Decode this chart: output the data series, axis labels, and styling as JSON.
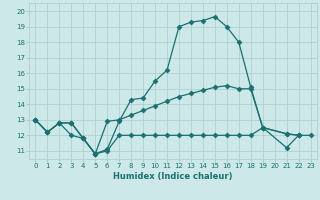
{
  "xlabel": "Humidex (Indice chaleur)",
  "bg_color": "#cce8e8",
  "grid_color": "#aacccc",
  "line_color": "#1a7070",
  "xlim": [
    -0.5,
    23.5
  ],
  "ylim": [
    10.5,
    20.5
  ],
  "yticks": [
    11,
    12,
    13,
    14,
    15,
    16,
    17,
    18,
    19,
    20
  ],
  "xticks": [
    0,
    1,
    2,
    3,
    4,
    5,
    6,
    7,
    8,
    9,
    10,
    11,
    12,
    13,
    14,
    15,
    16,
    17,
    18,
    19,
    20,
    21,
    22,
    23
  ],
  "line1_x": [
    0,
    1,
    2,
    3,
    4,
    5,
    6,
    7,
    8,
    9,
    10,
    11,
    12,
    13,
    14,
    15,
    16,
    17,
    18,
    19,
    21,
    22
  ],
  "line1_y": [
    13.0,
    12.2,
    12.8,
    12.8,
    11.8,
    10.8,
    11.1,
    12.9,
    14.3,
    14.4,
    15.5,
    16.2,
    19.0,
    19.3,
    19.4,
    19.65,
    19.0,
    18.0,
    15.1,
    12.5,
    12.1,
    12.0
  ],
  "line2_x": [
    0,
    1,
    2,
    3,
    4,
    5,
    6,
    7,
    8,
    9,
    10,
    11,
    12,
    13,
    14,
    15,
    16,
    17,
    18,
    19,
    21,
    22
  ],
  "line2_y": [
    13.0,
    12.2,
    12.8,
    12.8,
    11.8,
    10.8,
    12.9,
    13.0,
    13.3,
    13.6,
    13.9,
    14.2,
    14.5,
    14.7,
    14.9,
    15.1,
    15.2,
    15.0,
    15.0,
    12.5,
    12.1,
    12.0
  ],
  "line3_x": [
    0,
    1,
    2,
    3,
    4,
    5,
    6,
    7,
    8,
    9,
    10,
    11,
    12,
    13,
    14,
    15,
    16,
    17,
    18,
    19,
    21,
    22,
    23
  ],
  "line3_y": [
    13.0,
    12.2,
    12.8,
    12.0,
    11.8,
    10.8,
    11.0,
    12.0,
    12.0,
    12.0,
    12.0,
    12.0,
    12.0,
    12.0,
    12.0,
    12.0,
    12.0,
    12.0,
    12.0,
    12.5,
    11.2,
    12.0,
    12.0
  ]
}
